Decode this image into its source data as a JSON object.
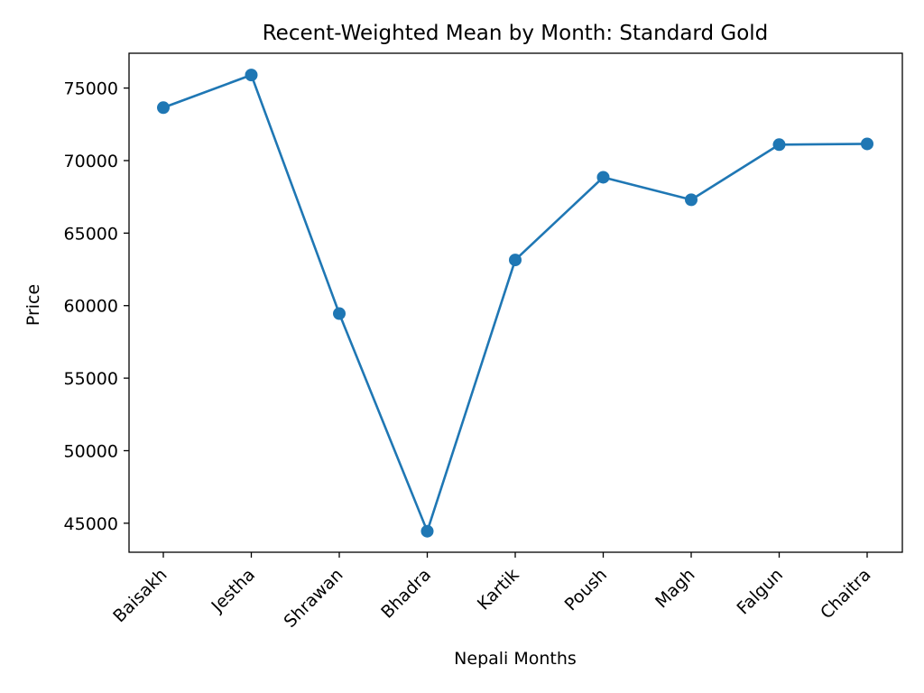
{
  "chart_data": {
    "type": "line",
    "title": "Recent-Weighted Mean by Month: Standard Gold",
    "xlabel": "Nepali Months",
    "ylabel": "Price",
    "categories": [
      "Baisakh",
      "Jestha",
      "Shrawan",
      "Bhadra",
      "Kartik",
      "Poush",
      "Magh",
      "Falgun",
      "Chaitra"
    ],
    "series": [
      {
        "values": [
          73650,
          75900,
          59450,
          44450,
          63150,
          68850,
          67300,
          71100,
          71150
        ],
        "color": "#1f77b4",
        "marker": "circle"
      }
    ],
    "ylim": [
      43000,
      77400
    ],
    "yticks": [
      45000,
      50000,
      55000,
      60000,
      65000,
      70000,
      75000
    ],
    "ytick_labels": [
      "45000",
      "50000",
      "55000",
      "60000",
      "65000",
      "70000",
      "75000"
    ],
    "grid": false,
    "legend": "none"
  }
}
